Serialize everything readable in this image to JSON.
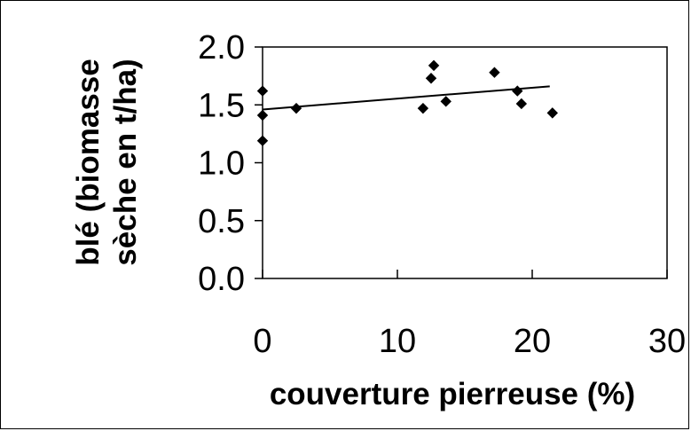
{
  "chart_data": {
    "type": "scatter",
    "title": "",
    "xlabel": "couverture pierreuse (%)",
    "ylabel_line1": "blé (biomasse",
    "ylabel_line2": "sèche en t/ha)",
    "xlim": [
      0,
      30
    ],
    "ylim": [
      0,
      2
    ],
    "x_ticks": [
      0,
      10,
      20,
      30
    ],
    "x_tick_labels": [
      "0",
      "10",
      "20",
      "30"
    ],
    "y_ticks": [
      0,
      0.5,
      1,
      1.5,
      2
    ],
    "y_tick_labels": [
      "0.0",
      "0.5",
      "1.0",
      "1.5",
      "2.0"
    ],
    "grid": false,
    "legend": false,
    "points": [
      {
        "x": 0.0,
        "y": 1.62
      },
      {
        "x": 0.0,
        "y": 1.41
      },
      {
        "x": 0.0,
        "y": 1.19
      },
      {
        "x": 2.5,
        "y": 1.47
      },
      {
        "x": 11.9,
        "y": 1.47
      },
      {
        "x": 12.5,
        "y": 1.73
      },
      {
        "x": 12.7,
        "y": 1.84
      },
      {
        "x": 13.6,
        "y": 1.53
      },
      {
        "x": 17.2,
        "y": 1.78
      },
      {
        "x": 18.9,
        "y": 1.62
      },
      {
        "x": 19.2,
        "y": 1.51
      },
      {
        "x": 21.5,
        "y": 1.43
      }
    ],
    "trendline": {
      "x": [
        0,
        21.3
      ],
      "y": [
        1.46,
        1.66
      ]
    },
    "colors": {
      "marker": "#000000",
      "line": "#000000",
      "axis": "#000000"
    }
  }
}
